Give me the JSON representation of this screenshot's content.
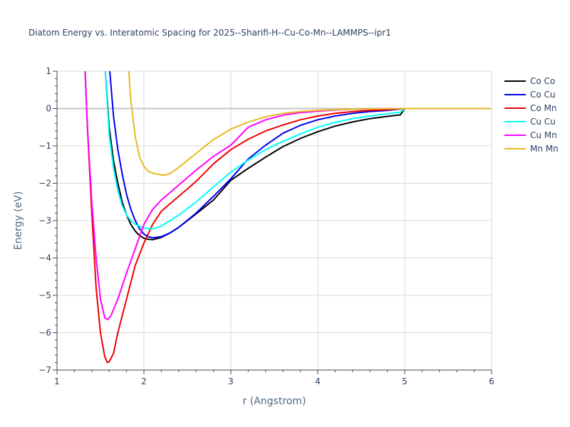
{
  "chart_data": {
    "type": "line",
    "title": "Diatom Energy vs. Interatomic Spacing for 2025--Sharifi-H--Cu-Co-Mn--LAMMPS--ipr1",
    "xlabel": "r (Angstrom)",
    "ylabel": "Energy (eV)",
    "xlim": [
      1,
      6
    ],
    "ylim": [
      -7,
      1
    ],
    "xticks": [
      "1",
      "2",
      "3",
      "4",
      "5",
      "6"
    ],
    "yticks": [
      "1",
      "0",
      "−1",
      "−2",
      "−3",
      "−4",
      "−5",
      "−6",
      "−7"
    ],
    "grid": true,
    "legend_position": "top-right",
    "series": [
      {
        "name": "Co Co",
        "color": "#000000",
        "points": [
          [
            1.55,
            1.2
          ],
          [
            1.6,
            -0.5
          ],
          [
            1.65,
            -1.4
          ],
          [
            1.7,
            -2.0
          ],
          [
            1.75,
            -2.5
          ],
          [
            1.8,
            -2.85
          ],
          [
            1.85,
            -3.1
          ],
          [
            1.9,
            -3.28
          ],
          [
            1.95,
            -3.4
          ],
          [
            2.0,
            -3.47
          ],
          [
            2.05,
            -3.5
          ],
          [
            2.1,
            -3.51
          ],
          [
            2.2,
            -3.45
          ],
          [
            2.3,
            -3.33
          ],
          [
            2.4,
            -3.18
          ],
          [
            2.6,
            -2.82
          ],
          [
            2.8,
            -2.45
          ],
          [
            3.0,
            -1.92
          ],
          [
            3.2,
            -1.6
          ],
          [
            3.4,
            -1.3
          ],
          [
            3.6,
            -1.02
          ],
          [
            3.8,
            -0.8
          ],
          [
            4.0,
            -0.62
          ],
          [
            4.2,
            -0.47
          ],
          [
            4.4,
            -0.36
          ],
          [
            4.6,
            -0.27
          ],
          [
            4.8,
            -0.21
          ],
          [
            4.95,
            -0.17
          ],
          [
            5.0,
            0.0
          ],
          [
            6.0,
            0.0
          ]
        ]
      },
      {
        "name": "Co Cu",
        "color": "#0000ee",
        "points": [
          [
            1.6,
            1.2
          ],
          [
            1.65,
            -0.2
          ],
          [
            1.7,
            -1.1
          ],
          [
            1.75,
            -1.75
          ],
          [
            1.8,
            -2.3
          ],
          [
            1.85,
            -2.7
          ],
          [
            1.9,
            -3.0
          ],
          [
            1.95,
            -3.22
          ],
          [
            2.0,
            -3.36
          ],
          [
            2.05,
            -3.43
          ],
          [
            2.1,
            -3.46
          ],
          [
            2.2,
            -3.43
          ],
          [
            2.3,
            -3.33
          ],
          [
            2.4,
            -3.18
          ],
          [
            2.6,
            -2.8
          ],
          [
            2.8,
            -2.35
          ],
          [
            3.0,
            -1.88
          ],
          [
            3.2,
            -1.35
          ],
          [
            3.4,
            -0.98
          ],
          [
            3.6,
            -0.66
          ],
          [
            3.8,
            -0.45
          ],
          [
            4.0,
            -0.3
          ],
          [
            4.2,
            -0.2
          ],
          [
            4.4,
            -0.13
          ],
          [
            4.6,
            -0.08
          ],
          [
            4.8,
            -0.05
          ],
          [
            5.0,
            0.0
          ],
          [
            6.0,
            0.0
          ]
        ]
      },
      {
        "name": "Co Mn",
        "color": "#ee0000",
        "points": [
          [
            1.32,
            1.2
          ],
          [
            1.35,
            -0.5
          ],
          [
            1.4,
            -2.8
          ],
          [
            1.45,
            -4.8
          ],
          [
            1.5,
            -6.0
          ],
          [
            1.55,
            -6.65
          ],
          [
            1.58,
            -6.8
          ],
          [
            1.6,
            -6.78
          ],
          [
            1.65,
            -6.55
          ],
          [
            1.7,
            -6.0
          ],
          [
            1.8,
            -5.1
          ],
          [
            1.9,
            -4.2
          ],
          [
            2.0,
            -3.6
          ],
          [
            2.1,
            -3.1
          ],
          [
            2.2,
            -2.75
          ],
          [
            2.4,
            -2.35
          ],
          [
            2.6,
            -1.95
          ],
          [
            2.8,
            -1.48
          ],
          [
            3.0,
            -1.1
          ],
          [
            3.2,
            -0.82
          ],
          [
            3.4,
            -0.6
          ],
          [
            3.6,
            -0.44
          ],
          [
            3.8,
            -0.3
          ],
          [
            4.0,
            -0.2
          ],
          [
            4.2,
            -0.13
          ],
          [
            4.4,
            -0.08
          ],
          [
            4.6,
            -0.05
          ],
          [
            4.8,
            -0.03
          ],
          [
            5.0,
            0.0
          ],
          [
            6.0,
            0.0
          ]
        ]
      },
      {
        "name": "Cu Cu",
        "color": "#00ffff",
        "points": [
          [
            1.55,
            1.2
          ],
          [
            1.6,
            -0.7
          ],
          [
            1.65,
            -1.6
          ],
          [
            1.7,
            -2.2
          ],
          [
            1.75,
            -2.6
          ],
          [
            1.8,
            -2.85
          ],
          [
            1.85,
            -3.0
          ],
          [
            1.9,
            -3.1
          ],
          [
            2.0,
            -3.2
          ],
          [
            2.1,
            -3.22
          ],
          [
            2.2,
            -3.15
          ],
          [
            2.3,
            -3.0
          ],
          [
            2.4,
            -2.85
          ],
          [
            2.6,
            -2.5
          ],
          [
            2.8,
            -2.1
          ],
          [
            3.0,
            -1.7
          ],
          [
            3.2,
            -1.38
          ],
          [
            3.4,
            -1.1
          ],
          [
            3.6,
            -0.88
          ],
          [
            3.8,
            -0.68
          ],
          [
            4.0,
            -0.5
          ],
          [
            4.2,
            -0.37
          ],
          [
            4.4,
            -0.27
          ],
          [
            4.6,
            -0.2
          ],
          [
            4.8,
            -0.14
          ],
          [
            4.95,
            -0.1
          ],
          [
            5.0,
            0.0
          ],
          [
            6.0,
            0.0
          ]
        ]
      },
      {
        "name": "Cu Mn",
        "color": "#ff00ff",
        "points": [
          [
            1.32,
            1.2
          ],
          [
            1.35,
            -0.5
          ],
          [
            1.4,
            -2.5
          ],
          [
            1.45,
            -4.0
          ],
          [
            1.5,
            -5.1
          ],
          [
            1.55,
            -5.6
          ],
          [
            1.58,
            -5.65
          ],
          [
            1.62,
            -5.55
          ],
          [
            1.7,
            -5.1
          ],
          [
            1.8,
            -4.4
          ],
          [
            1.9,
            -3.75
          ],
          [
            2.0,
            -3.1
          ],
          [
            2.1,
            -2.7
          ],
          [
            2.2,
            -2.45
          ],
          [
            2.4,
            -2.05
          ],
          [
            2.6,
            -1.65
          ],
          [
            2.8,
            -1.28
          ],
          [
            3.0,
            -0.98
          ],
          [
            3.2,
            -0.5
          ],
          [
            3.4,
            -0.3
          ],
          [
            3.6,
            -0.18
          ],
          [
            3.8,
            -0.11
          ],
          [
            4.0,
            -0.07
          ],
          [
            4.2,
            -0.04
          ],
          [
            4.4,
            -0.02
          ],
          [
            4.6,
            -0.01
          ],
          [
            5.0,
            0.0
          ],
          [
            6.0,
            0.0
          ]
        ]
      },
      {
        "name": "Mn Mn",
        "color": "#e8b923",
        "points": [
          [
            1.82,
            1.2
          ],
          [
            1.85,
            0.2
          ],
          [
            1.9,
            -0.75
          ],
          [
            1.95,
            -1.3
          ],
          [
            2.0,
            -1.55
          ],
          [
            2.05,
            -1.68
          ],
          [
            2.1,
            -1.73
          ],
          [
            2.2,
            -1.78
          ],
          [
            2.25,
            -1.78
          ],
          [
            2.3,
            -1.74
          ],
          [
            2.4,
            -1.58
          ],
          [
            2.6,
            -1.2
          ],
          [
            2.8,
            -0.83
          ],
          [
            3.0,
            -0.55
          ],
          [
            3.2,
            -0.36
          ],
          [
            3.4,
            -0.22
          ],
          [
            3.6,
            -0.13
          ],
          [
            3.8,
            -0.08
          ],
          [
            4.0,
            -0.05
          ],
          [
            4.2,
            -0.03
          ],
          [
            4.4,
            -0.02
          ],
          [
            4.6,
            -0.01
          ],
          [
            5.0,
            0.0
          ],
          [
            6.0,
            0.0
          ]
        ]
      }
    ]
  }
}
